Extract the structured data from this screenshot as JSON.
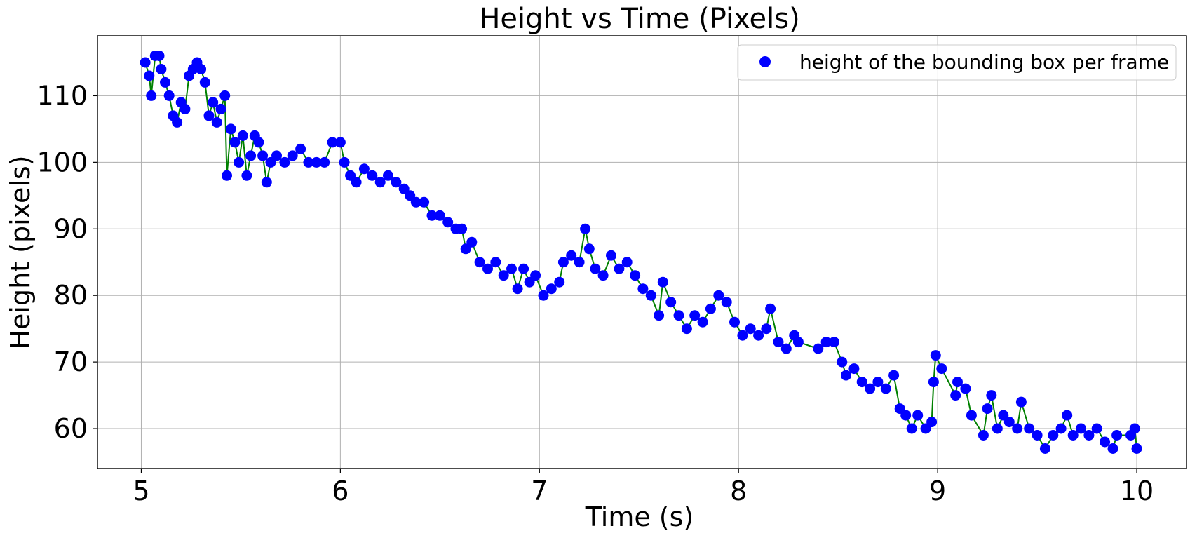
{
  "chart_data": {
    "type": "scatter",
    "title": "Height vs Time (Pixels)",
    "xlabel": "Time (s)",
    "ylabel": "Height (pixels)",
    "xlim": [
      4.78,
      10.25
    ],
    "ylim": [
      54,
      119
    ],
    "xticks": [
      5,
      6,
      7,
      8,
      9,
      10
    ],
    "yticks": [
      60,
      70,
      80,
      90,
      100,
      110
    ],
    "grid": true,
    "legend": {
      "position": "top-right"
    },
    "series": [
      {
        "name": "height of the bounding box per frame",
        "marker_color": "#0000ff",
        "line_color": "#008000",
        "points": [
          [
            5.02,
            115
          ],
          [
            5.04,
            113
          ],
          [
            5.05,
            110
          ],
          [
            5.07,
            116
          ],
          [
            5.09,
            116
          ],
          [
            5.1,
            114
          ],
          [
            5.12,
            112
          ],
          [
            5.14,
            110
          ],
          [
            5.16,
            107
          ],
          [
            5.18,
            106
          ],
          [
            5.2,
            109
          ],
          [
            5.22,
            108
          ],
          [
            5.24,
            113
          ],
          [
            5.26,
            114
          ],
          [
            5.28,
            115
          ],
          [
            5.3,
            114
          ],
          [
            5.32,
            112
          ],
          [
            5.34,
            107
          ],
          [
            5.36,
            109
          ],
          [
            5.38,
            106
          ],
          [
            5.4,
            108
          ],
          [
            5.42,
            110
          ],
          [
            5.43,
            98
          ],
          [
            5.45,
            105
          ],
          [
            5.47,
            103
          ],
          [
            5.49,
            100
          ],
          [
            5.51,
            104
          ],
          [
            5.53,
            98
          ],
          [
            5.55,
            101
          ],
          [
            5.57,
            104
          ],
          [
            5.59,
            103
          ],
          [
            5.61,
            101
          ],
          [
            5.63,
            97
          ],
          [
            5.65,
            100
          ],
          [
            5.68,
            101
          ],
          [
            5.72,
            100
          ],
          [
            5.76,
            101
          ],
          [
            5.8,
            102
          ],
          [
            5.84,
            100
          ],
          [
            5.88,
            100
          ],
          [
            5.92,
            100
          ],
          [
            5.96,
            103
          ],
          [
            6.0,
            103
          ],
          [
            6.02,
            100
          ],
          [
            6.05,
            98
          ],
          [
            6.08,
            97
          ],
          [
            6.12,
            99
          ],
          [
            6.16,
            98
          ],
          [
            6.2,
            97
          ],
          [
            6.24,
            98
          ],
          [
            6.28,
            97
          ],
          [
            6.32,
            96
          ],
          [
            6.35,
            95
          ],
          [
            6.38,
            94
          ],
          [
            6.42,
            94
          ],
          [
            6.46,
            92
          ],
          [
            6.5,
            92
          ],
          [
            6.54,
            91
          ],
          [
            6.58,
            90
          ],
          [
            6.61,
            90
          ],
          [
            6.63,
            87
          ],
          [
            6.66,
            88
          ],
          [
            6.7,
            85
          ],
          [
            6.74,
            84
          ],
          [
            6.78,
            85
          ],
          [
            6.82,
            83
          ],
          [
            6.86,
            84
          ],
          [
            6.89,
            81
          ],
          [
            6.92,
            84
          ],
          [
            6.95,
            82
          ],
          [
            6.98,
            83
          ],
          [
            7.02,
            80
          ],
          [
            7.06,
            81
          ],
          [
            7.1,
            82
          ],
          [
            7.12,
            85
          ],
          [
            7.16,
            86
          ],
          [
            7.2,
            85
          ],
          [
            7.23,
            90
          ],
          [
            7.25,
            87
          ],
          [
            7.28,
            84
          ],
          [
            7.32,
            83
          ],
          [
            7.36,
            86
          ],
          [
            7.4,
            84
          ],
          [
            7.44,
            85
          ],
          [
            7.48,
            83
          ],
          [
            7.52,
            81
          ],
          [
            7.56,
            80
          ],
          [
            7.6,
            77
          ],
          [
            7.62,
            82
          ],
          [
            7.66,
            79
          ],
          [
            7.7,
            77
          ],
          [
            7.74,
            75
          ],
          [
            7.78,
            77
          ],
          [
            7.82,
            76
          ],
          [
            7.86,
            78
          ],
          [
            7.9,
            80
          ],
          [
            7.94,
            79
          ],
          [
            7.98,
            76
          ],
          [
            8.02,
            74
          ],
          [
            8.06,
            75
          ],
          [
            8.1,
            74
          ],
          [
            8.14,
            75
          ],
          [
            8.16,
            78
          ],
          [
            8.2,
            73
          ],
          [
            8.24,
            72
          ],
          [
            8.28,
            74
          ],
          [
            8.3,
            73
          ],
          [
            8.4,
            72
          ],
          [
            8.44,
            73
          ],
          [
            8.48,
            73
          ],
          [
            8.52,
            70
          ],
          [
            8.54,
            68
          ],
          [
            8.58,
            69
          ],
          [
            8.62,
            67
          ],
          [
            8.66,
            66
          ],
          [
            8.7,
            67
          ],
          [
            8.74,
            66
          ],
          [
            8.78,
            68
          ],
          [
            8.81,
            63
          ],
          [
            8.84,
            62
          ],
          [
            8.87,
            60
          ],
          [
            8.9,
            62
          ],
          [
            8.94,
            60
          ],
          [
            8.97,
            61
          ],
          [
            8.98,
            67
          ],
          [
            8.99,
            71
          ],
          [
            9.02,
            69
          ],
          [
            9.09,
            65
          ],
          [
            9.1,
            67
          ],
          [
            9.14,
            66
          ],
          [
            9.17,
            62
          ],
          [
            9.23,
            59
          ],
          [
            9.25,
            63
          ],
          [
            9.27,
            65
          ],
          [
            9.3,
            60
          ],
          [
            9.33,
            62
          ],
          [
            9.36,
            61
          ],
          [
            9.4,
            60
          ],
          [
            9.42,
            64
          ],
          [
            9.46,
            60
          ],
          [
            9.5,
            59
          ],
          [
            9.54,
            57
          ],
          [
            9.58,
            59
          ],
          [
            9.62,
            60
          ],
          [
            9.65,
            62
          ],
          [
            9.68,
            59
          ],
          [
            9.72,
            60
          ],
          [
            9.76,
            59
          ],
          [
            9.8,
            60
          ],
          [
            9.84,
            58
          ],
          [
            9.88,
            57
          ],
          [
            9.9,
            59
          ],
          [
            9.97,
            59
          ],
          [
            9.99,
            60
          ],
          [
            10.0,
            57
          ]
        ]
      }
    ]
  }
}
